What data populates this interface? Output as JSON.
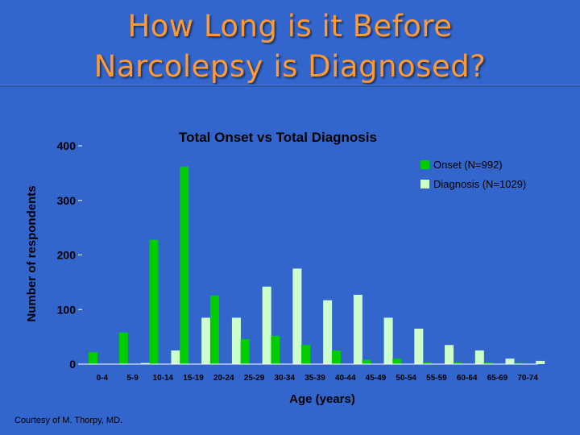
{
  "slide": {
    "title_line1": "How Long is it Before",
    "title_line2": "Narcolepsy is Diagnosed?",
    "credit": "Courtesy of M. Thorpy, MD."
  },
  "colors": {
    "background": "#3366cc",
    "title": "#ff9933",
    "onset": "#00cc00",
    "diagnosis": "#ccffcc",
    "axis_text": "#000000",
    "axis_line": "#ffffff"
  },
  "chart_data": {
    "type": "bar",
    "title": "Total Onset vs Total Diagnosis",
    "xlabel": "Age (years)",
    "ylabel": "Number of respondents",
    "ylim": [
      0,
      400
    ],
    "yticks": [
      0,
      100,
      200,
      300,
      400
    ],
    "grid": false,
    "legend_position": "top-right",
    "categories": [
      "0-4",
      "5-9",
      "10-14",
      "15-19",
      "20-24",
      "25-29",
      "30-34",
      "35-39",
      "40-44",
      "45-49",
      "50-54",
      "55-59",
      "60-64",
      "65-69",
      "70-74"
    ],
    "series": [
      {
        "name": "Onset (N=992)",
        "color": "#00cc00",
        "values": [
          22,
          58,
          228,
          362,
          126,
          46,
          52,
          35,
          25,
          8,
          10,
          3,
          3,
          3,
          2
        ]
      },
      {
        "name": "Diagnosis (N=1029)",
        "color": "#ccffcc",
        "values": [
          0,
          2,
          25,
          85,
          85,
          142,
          175,
          117,
          127,
          85,
          65,
          35,
          25,
          10,
          6
        ]
      }
    ]
  }
}
